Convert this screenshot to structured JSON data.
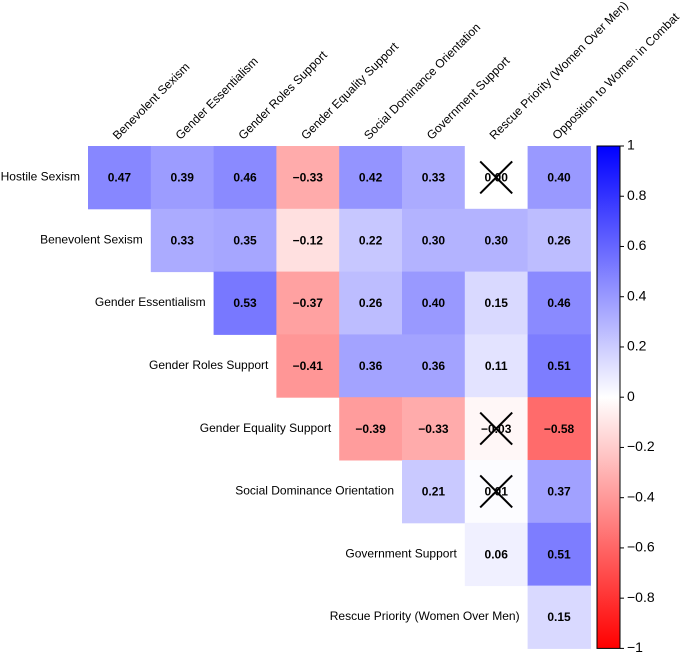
{
  "chart_data": {
    "type": "heatmap",
    "row_labels": [
      "Hostile Sexism",
      "Benevolent Sexism",
      "Gender Essentialism",
      "Gender Roles Support",
      "Gender Equality Support",
      "Social Dominance Orientation",
      "Government Support",
      "Rescue Priority (Women Over Men)"
    ],
    "col_labels": [
      "Benevolent Sexism",
      "Gender Essentialism",
      "Gender Roles Support",
      "Gender Equality Support",
      "Social Dominance Orientation",
      "Government Support",
      "Rescue Priority (Women Over Men)",
      "Opposition to Women in Combat"
    ],
    "values": [
      [
        0.47,
        0.39,
        0.46,
        -0.33,
        0.42,
        0.33,
        0.0,
        0.4
      ],
      [
        null,
        0.33,
        0.35,
        -0.12,
        0.22,
        0.3,
        0.3,
        0.26
      ],
      [
        null,
        null,
        0.53,
        -0.37,
        0.26,
        0.4,
        0.15,
        0.46
      ],
      [
        null,
        null,
        null,
        -0.41,
        0.36,
        0.36,
        0.11,
        0.51
      ],
      [
        null,
        null,
        null,
        null,
        -0.39,
        -0.33,
        -0.03,
        -0.58
      ],
      [
        null,
        null,
        null,
        null,
        null,
        0.21,
        0.01,
        0.37
      ],
      [
        null,
        null,
        null,
        null,
        null,
        null,
        0.06,
        0.51
      ],
      [
        null,
        null,
        null,
        null,
        null,
        null,
        null,
        0.15
      ]
    ],
    "value_labels": [
      [
        "0.47",
        "0.39",
        "0.46",
        "−0.33",
        "0.42",
        "0.33",
        "0.00",
        "0.40"
      ],
      [
        null,
        "0.33",
        "0.35",
        "−0.12",
        "0.22",
        "0.30",
        "0.30",
        "0.26"
      ],
      [
        null,
        null,
        "0.53",
        "−0.37",
        "0.26",
        "0.40",
        "0.15",
        "0.46"
      ],
      [
        null,
        null,
        null,
        "−0.41",
        "0.36",
        "0.36",
        "0.11",
        "0.51"
      ],
      [
        null,
        null,
        null,
        null,
        "−0.39",
        "−0.33",
        "−0.03",
        "−0.58"
      ],
      [
        null,
        null,
        null,
        null,
        null,
        "0.21",
        "0.01",
        "0.37"
      ],
      [
        null,
        null,
        null,
        null,
        null,
        null,
        "0.06",
        "0.51"
      ],
      [
        null,
        null,
        null,
        null,
        null,
        null,
        null,
        "0.15"
      ]
    ],
    "crossed": [
      [
        0,
        6
      ],
      [
        4,
        6
      ],
      [
        5,
        6
      ]
    ],
    "clim": [
      -1,
      1
    ],
    "colors": {
      "low": "#ff0000",
      "mid": "#ffffff",
      "high": "#0000ff"
    },
    "cticks": [
      1,
      0.8,
      0.6,
      0.4,
      0.2,
      0,
      {
        "value": -0.2,
        "label": "−0.2"
      },
      {
        "value": -0.4,
        "label": "−0.4"
      },
      {
        "value": -0.6,
        "label": "−0.6"
      },
      {
        "value": -0.8,
        "label": "−0.8"
      },
      {
        "value": -1,
        "label": "−1"
      }
    ]
  }
}
